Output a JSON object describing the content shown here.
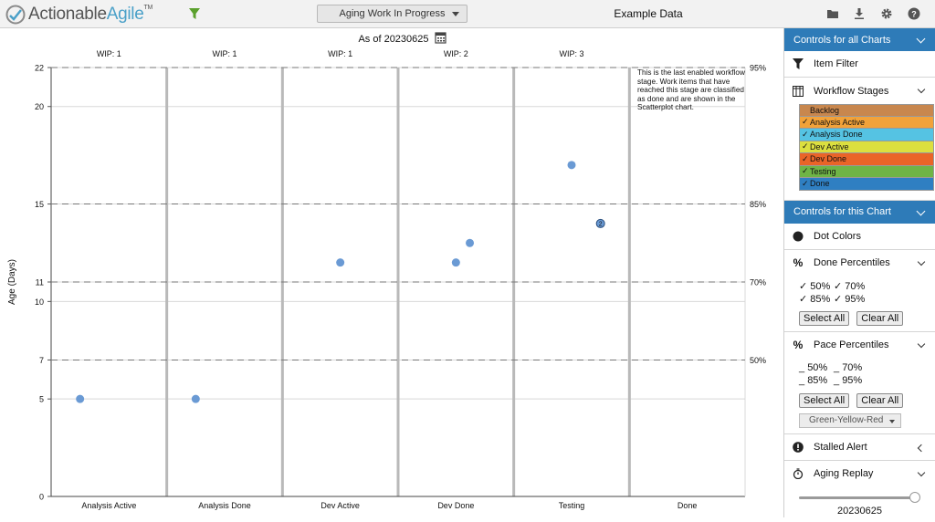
{
  "header": {
    "logo_text_a": "Actionable",
    "logo_text_b": "Agile",
    "logo_tm": "TM",
    "chart_selector": "Aging Work In Progress",
    "dataset_title": "Example Data"
  },
  "chart": {
    "as_of": "As of 20230625",
    "ylabel": "Age (Days)",
    "stall_note": "This is the last enabled workflow stage. Work items that have reached this stage are classified as done and are shown in the Scatterplot chart."
  },
  "chart_data": {
    "type": "scatter",
    "categories": [
      "Analysis Active",
      "Analysis Done",
      "Dev Active",
      "Dev Done",
      "Testing",
      "Done"
    ],
    "wip_labels": [
      "WIP: 1",
      "WIP: 1",
      "WIP: 1",
      "WIP: 2",
      "WIP: 3",
      ""
    ],
    "y_ticks": [
      0,
      5,
      7,
      10,
      11,
      15,
      20,
      22
    ],
    "ylim": [
      0,
      22
    ],
    "percentile_lines": [
      {
        "label": "50%",
        "value": 7
      },
      {
        "label": "70%",
        "value": 11
      },
      {
        "label": "85%",
        "value": 15
      },
      {
        "label": "95%",
        "value": 22
      }
    ],
    "points": [
      {
        "stage": 0,
        "offset": 0.25,
        "age": 5,
        "count": 1
      },
      {
        "stage": 1,
        "offset": 0.25,
        "age": 5,
        "count": 1
      },
      {
        "stage": 2,
        "offset": 0.5,
        "age": 12,
        "count": 1
      },
      {
        "stage": 3,
        "offset": 0.5,
        "age": 12,
        "count": 1
      },
      {
        "stage": 3,
        "offset": 0.62,
        "age": 13,
        "count": 1
      },
      {
        "stage": 4,
        "offset": 0.5,
        "age": 17,
        "count": 1
      },
      {
        "stage": 4,
        "offset": 0.75,
        "age": 14,
        "count": 2
      }
    ],
    "point_color": "#6a9ad4"
  },
  "sidebar": {
    "all_charts_header": "Controls for all Charts",
    "item_filter": "Item Filter",
    "workflow_stages": "Workflow Stages",
    "stages": [
      {
        "label": "Backlog",
        "color": "#c8874e",
        "checked": false
      },
      {
        "label": "Analysis Active",
        "color": "#f2a23a",
        "checked": true
      },
      {
        "label": "Analysis Done",
        "color": "#55c3e3",
        "checked": true
      },
      {
        "label": "Dev Active",
        "color": "#dcdf3f",
        "checked": true
      },
      {
        "label": "Dev Done",
        "color": "#ea6428",
        "checked": true
      },
      {
        "label": "Testing",
        "color": "#6fb446",
        "checked": true
      },
      {
        "label": "Done",
        "color": "#2f7fc2",
        "checked": true
      }
    ],
    "this_chart_header": "Controls for this Chart",
    "dot_colors": "Dot Colors",
    "done_percentiles": "Done Percentiles",
    "done_pcts": [
      [
        "✓",
        "50%"
      ],
      [
        "✓",
        "70%"
      ],
      [
        "✓",
        "85%"
      ],
      [
        "✓",
        "95%"
      ]
    ],
    "select_all": "Select All",
    "clear_all": "Clear All",
    "pace_percentiles": "Pace Percentiles",
    "pace_pcts": [
      [
        "_",
        "50%"
      ],
      [
        "_",
        "70%"
      ],
      [
        "_",
        "85%"
      ],
      [
        "_",
        "95%"
      ]
    ],
    "color_scheme": "Green-Yellow-Red",
    "stalled_alert": "Stalled Alert",
    "aging_replay": "Aging Replay",
    "replay_date": "20230625"
  }
}
